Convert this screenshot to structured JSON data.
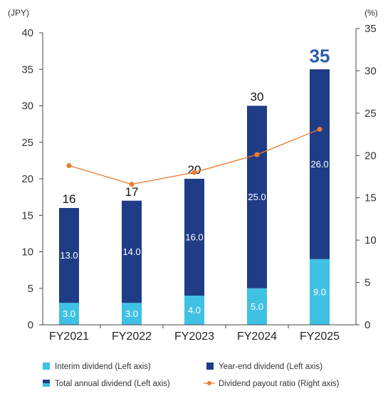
{
  "chart_data": {
    "type": "bar",
    "stacked": true,
    "categories": [
      "FY2021",
      "FY2022",
      "FY2023",
      "FY2024",
      "FY2025"
    ],
    "series": [
      {
        "name": "Interim dividend (Left axis)",
        "type": "bar",
        "axis": "left",
        "values": [
          3.0,
          3.0,
          4.0,
          5.0,
          9.0
        ],
        "labels": [
          "3.0",
          "3.0",
          "4.0",
          "5.0",
          "9.0"
        ]
      },
      {
        "name": "Year-end dividend (Left axis)",
        "type": "bar",
        "axis": "left",
        "values": [
          13.0,
          14.0,
          16.0,
          25.0,
          26.0
        ],
        "labels": [
          "13.0",
          "14.0",
          "16.0",
          "25.0",
          "26.0"
        ]
      },
      {
        "name": "Dividend payout ratio (Right axis)",
        "type": "line",
        "axis": "right",
        "values": [
          18.8,
          16.6,
          18.0,
          20.1,
          23.1
        ]
      }
    ],
    "total": {
      "name": "Total annual dividend (Left axis)",
      "values": [
        16,
        17,
        20,
        30,
        35
      ],
      "labels": [
        "16",
        "17",
        "20",
        "30",
        "35"
      ],
      "highlighted_category": "FY2025"
    },
    "left_axis": {
      "unit_label": "(JPY)",
      "ylim": [
        0,
        40
      ],
      "ticks": [
        0,
        5,
        10,
        15,
        20,
        25,
        30,
        35,
        40
      ]
    },
    "right_axis": {
      "unit_label": "(%)",
      "ylim": [
        0,
        35
      ],
      "ticks": [
        0,
        5,
        10,
        15,
        20,
        25,
        30,
        35
      ]
    },
    "grid": false,
    "legend_position": "bottom",
    "colors": {
      "interim": "#3FC1E4",
      "year_end": "#1F3D86",
      "payout_ratio": "#EE7A2F",
      "highlight": "#2C5CAA"
    }
  }
}
